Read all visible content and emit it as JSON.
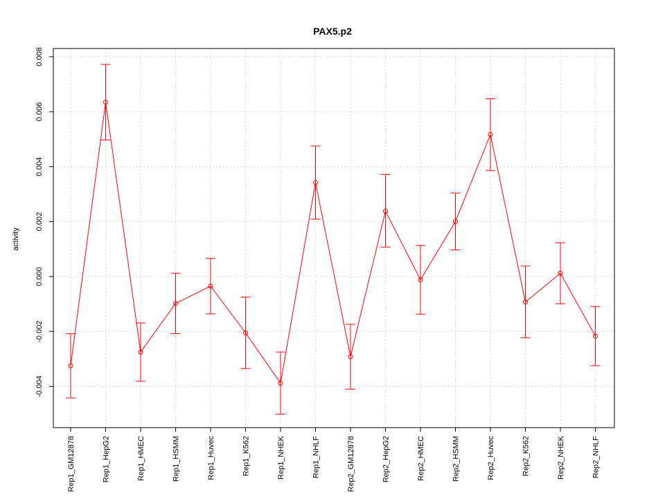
{
  "chart_data": {
    "type": "line",
    "title": "PAX5.p2",
    "xlabel": "",
    "ylabel": "activity",
    "ylim": [
      -0.0055,
      0.0083
    ],
    "yticks": [
      -0.004,
      -0.002,
      0.0,
      0.002,
      0.004,
      0.006,
      0.008
    ],
    "ytick_labels": [
      "-0.004",
      "-0.002",
      "0.000",
      "0.002",
      "0.004",
      "0.006",
      "0.008"
    ],
    "grid": true,
    "color": "#ff0000",
    "categories": [
      "Rep1_GM12878",
      "Rep1_HepG2",
      "Rep1_HMEC",
      "Rep1_HSMM",
      "Rep1_Huvec",
      "Rep1_K562",
      "Rep1_NHEK",
      "Rep1_NHLF",
      "Rep2_GM12878",
      "Rep2_HepG2",
      "Rep2_HMEC",
      "Rep2_HSMM",
      "Rep2_Huvec",
      "Rep2_K562",
      "Rep2_NHEK",
      "Rep2_NHLF"
    ],
    "values": [
      -0.00325,
      0.00635,
      -0.00275,
      -0.00098,
      -0.00035,
      -0.00205,
      -0.00388,
      0.00342,
      -0.00292,
      0.00238,
      -0.00012,
      0.002,
      0.00517,
      -0.00093,
      0.00012,
      -0.00217
    ],
    "err_low": [
      -0.00442,
      0.00497,
      -0.00381,
      -0.00208,
      -0.00136,
      -0.00335,
      -0.00501,
      0.00209,
      -0.0041,
      0.00107,
      -0.00137,
      0.00097,
      0.00386,
      -0.00223,
      -0.00099,
      -0.00325
    ],
    "err_high": [
      -0.00208,
      0.00772,
      -0.00169,
      0.00012,
      0.00066,
      -0.00075,
      -0.00275,
      0.00475,
      -0.00174,
      0.00372,
      0.00113,
      0.00304,
      0.00647,
      0.00038,
      0.00123,
      -0.00109
    ]
  }
}
